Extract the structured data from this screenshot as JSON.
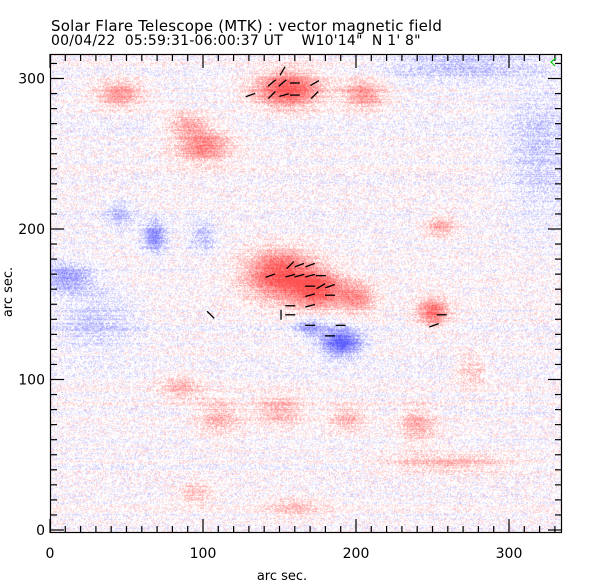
{
  "header": {
    "title": "Solar Flare Telescope (MTK) : vector magnetic field",
    "subtitle": "00/04/22  05:59:31-06:00:37 UT    W10'14\"  N 1' 8\""
  },
  "chart_data": {
    "type": "heatmap",
    "title": "Solar Flare Telescope (MTK) : vector magnetic field",
    "subtitle": "00/04/22  05:59:31-06:00:37 UT    W10'14\"  N 1' 8\"",
    "xlabel": "arc sec.",
    "ylabel": "arc sec.",
    "xlim": [
      0,
      335
    ],
    "ylim": [
      0,
      316
    ],
    "x_ticks": [
      0,
      100,
      200,
      300
    ],
    "y_ticks": [
      0,
      100,
      200,
      300
    ],
    "x_minor_step": 10,
    "y_minor_step": 10,
    "colors": {
      "positive": "#ff5050",
      "negative": "#5a5aff",
      "frame": "#000000",
      "arrows": "#000000",
      "corner_mark": "#00cc00"
    },
    "positive_regions": [
      {
        "x": 150,
        "y": 170,
        "rx": 22,
        "ry": 16,
        "strength": 1.0
      },
      {
        "x": 175,
        "y": 160,
        "rx": 16,
        "ry": 12,
        "strength": 0.9
      },
      {
        "x": 200,
        "y": 155,
        "rx": 12,
        "ry": 10,
        "strength": 0.6
      },
      {
        "x": 250,
        "y": 145,
        "rx": 10,
        "ry": 9,
        "strength": 0.8
      },
      {
        "x": 155,
        "y": 293,
        "rx": 22,
        "ry": 12,
        "strength": 1.0
      },
      {
        "x": 205,
        "y": 290,
        "rx": 14,
        "ry": 10,
        "strength": 0.6
      },
      {
        "x": 45,
        "y": 290,
        "rx": 15,
        "ry": 9,
        "strength": 0.6
      },
      {
        "x": 100,
        "y": 255,
        "rx": 18,
        "ry": 11,
        "strength": 0.7
      },
      {
        "x": 90,
        "y": 270,
        "rx": 15,
        "ry": 8,
        "strength": 0.45
      },
      {
        "x": 255,
        "y": 202,
        "rx": 10,
        "ry": 7,
        "strength": 0.5
      },
      {
        "x": 85,
        "y": 95,
        "rx": 14,
        "ry": 9,
        "strength": 0.4
      },
      {
        "x": 110,
        "y": 75,
        "rx": 14,
        "ry": 12,
        "strength": 0.4
      },
      {
        "x": 150,
        "y": 80,
        "rx": 16,
        "ry": 10,
        "strength": 0.45
      },
      {
        "x": 195,
        "y": 75,
        "rx": 12,
        "ry": 9,
        "strength": 0.4
      },
      {
        "x": 240,
        "y": 70,
        "rx": 12,
        "ry": 12,
        "strength": 0.45
      },
      {
        "x": 260,
        "y": 45,
        "rx": 40,
        "ry": 6,
        "strength": 0.4
      },
      {
        "x": 95,
        "y": 25,
        "rx": 12,
        "ry": 7,
        "strength": 0.35
      },
      {
        "x": 160,
        "y": 15,
        "rx": 20,
        "ry": 7,
        "strength": 0.3
      },
      {
        "x": 275,
        "y": 105,
        "rx": 10,
        "ry": 10,
        "strength": 0.35
      }
    ],
    "negative_regions": [
      {
        "x": 190,
        "y": 125,
        "rx": 13,
        "ry": 9,
        "strength": 1.0
      },
      {
        "x": 170,
        "y": 135,
        "rx": 10,
        "ry": 6,
        "strength": 0.5
      },
      {
        "x": 68,
        "y": 195,
        "rx": 7,
        "ry": 10,
        "strength": 0.7
      },
      {
        "x": 10,
        "y": 168,
        "rx": 18,
        "ry": 10,
        "strength": 0.55
      },
      {
        "x": 45,
        "y": 210,
        "rx": 9,
        "ry": 8,
        "strength": 0.4
      },
      {
        "x": 100,
        "y": 195,
        "rx": 8,
        "ry": 10,
        "strength": 0.35
      },
      {
        "x": 270,
        "y": 310,
        "rx": 50,
        "ry": 10,
        "strength": 0.35
      },
      {
        "x": 320,
        "y": 250,
        "rx": 20,
        "ry": 40,
        "strength": 0.3
      },
      {
        "x": 30,
        "y": 140,
        "rx": 25,
        "ry": 20,
        "strength": 0.3
      }
    ],
    "vectors": [
      {
        "x": 152,
        "y": 305,
        "angle": 60
      },
      {
        "x": 145,
        "y": 297,
        "angle": 40
      },
      {
        "x": 152,
        "y": 297,
        "angle": 40
      },
      {
        "x": 160,
        "y": 297,
        "angle": 0
      },
      {
        "x": 173,
        "y": 297,
        "angle": 30
      },
      {
        "x": 131,
        "y": 289,
        "angle": 20
      },
      {
        "x": 145,
        "y": 289,
        "angle": 45
      },
      {
        "x": 153,
        "y": 289,
        "angle": 15
      },
      {
        "x": 160,
        "y": 289,
        "angle": 0
      },
      {
        "x": 173,
        "y": 289,
        "angle": 45
      },
      {
        "x": 157,
        "y": 176,
        "angle": 45
      },
      {
        "x": 163,
        "y": 176,
        "angle": 20
      },
      {
        "x": 170,
        "y": 176,
        "angle": 20
      },
      {
        "x": 144,
        "y": 169,
        "angle": 20
      },
      {
        "x": 157,
        "y": 169,
        "angle": 15
      },
      {
        "x": 163,
        "y": 169,
        "angle": 15
      },
      {
        "x": 170,
        "y": 169,
        "angle": 15
      },
      {
        "x": 177,
        "y": 169,
        "angle": 0
      },
      {
        "x": 170,
        "y": 162,
        "angle": 0
      },
      {
        "x": 177,
        "y": 162,
        "angle": 30
      },
      {
        "x": 183,
        "y": 162,
        "angle": 20
      },
      {
        "x": 170,
        "y": 156,
        "angle": 15
      },
      {
        "x": 183,
        "y": 156,
        "angle": 0
      },
      {
        "x": 157,
        "y": 149,
        "angle": 0
      },
      {
        "x": 170,
        "y": 149,
        "angle": 15
      },
      {
        "x": 105,
        "y": 143,
        "angle": -45
      },
      {
        "x": 151,
        "y": 143,
        "angle": 90
      },
      {
        "x": 157,
        "y": 143,
        "angle": 0
      },
      {
        "x": 170,
        "y": 136,
        "angle": 0
      },
      {
        "x": 190,
        "y": 136,
        "angle": 0
      },
      {
        "x": 183,
        "y": 129,
        "angle": 0
      },
      {
        "x": 256,
        "y": 143,
        "angle": 0
      },
      {
        "x": 251,
        "y": 136,
        "angle": 20
      }
    ]
  }
}
